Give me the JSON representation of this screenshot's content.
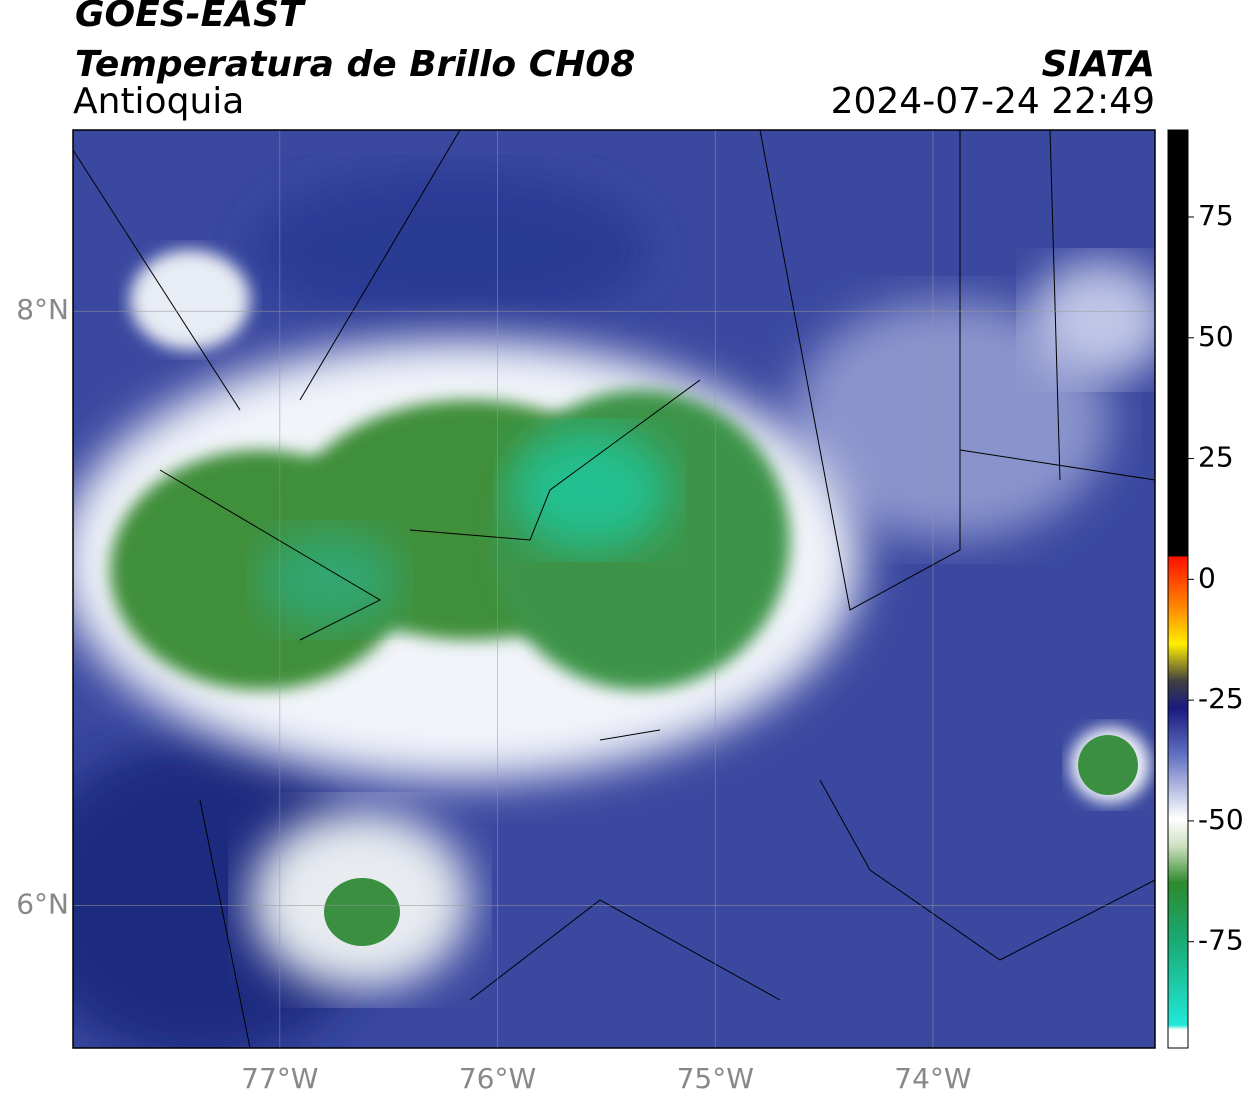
{
  "header": {
    "title": "GOES-EAST",
    "subtitle": "Temperatura de Brillo CH08",
    "region": "Antioquia",
    "source": "SIATA",
    "datetime": "2024-07-24 22:49"
  },
  "map": {
    "lonlim": [
      -77.95,
      -72.98
    ],
    "latlim": [
      5.52,
      8.61
    ],
    "lon_ticks": [
      {
        "value": -77,
        "label": "77°W"
      },
      {
        "value": -76,
        "label": "76°W"
      },
      {
        "value": -75,
        "label": "75°W"
      },
      {
        "value": -74,
        "label": "74°W"
      }
    ],
    "lat_ticks": [
      {
        "value": 8,
        "label": "8°N"
      },
      {
        "value": 6,
        "label": "6°N"
      }
    ]
  },
  "colorbar": {
    "lim": [
      -97,
      93
    ],
    "ticks": [
      75,
      50,
      25,
      0,
      -25,
      -50,
      -75
    ]
  }
}
